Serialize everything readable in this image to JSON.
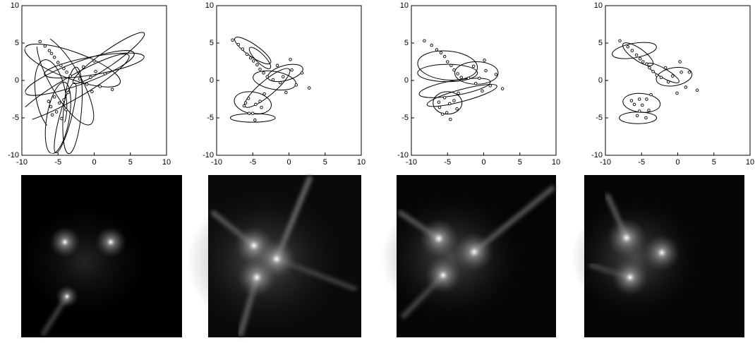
{
  "chart_data": [
    {
      "type": "scatter",
      "xlim": [
        -10,
        10
      ],
      "ylim": [
        -10,
        10
      ],
      "xticks": [
        -10,
        -5,
        0,
        5,
        10
      ],
      "yticks": [
        -10,
        -5,
        0,
        5,
        10
      ],
      "color": "#000000",
      "x": [
        -7.5,
        -6.8,
        -6.2,
        -5.9,
        -5.5,
        -5.0,
        -4.6,
        -4.2,
        -3.8,
        -3.3,
        -0.5,
        0.2,
        -1.0,
        0.8,
        1.5,
        -2.0,
        0.0,
        -1.5,
        2.5,
        -0.3,
        -5.5,
        -4.8,
        -6.0,
        -4.2,
        -5.2,
        -3.6,
        -6.3,
        -4.5,
        -5.8,
        -3.9
      ],
      "values": [
        5.2,
        4.6,
        4.0,
        3.6,
        3.1,
        2.4,
        2.0,
        1.6,
        1.1,
        0.6,
        0.4,
        1.2,
        -0.5,
        -0.8,
        0.9,
        0.2,
        2.6,
        1.8,
        -1.2,
        -1.5,
        -2.2,
        -3.0,
        -3.5,
        -2.6,
        -4.2,
        -1.6,
        -2.8,
        -5.1,
        -4.6,
        -3.9
      ],
      "ellipses": [
        {
          "cx": -3,
          "cy": -1,
          "rx": 9,
          "ry": 1.5,
          "angle": 30
        },
        {
          "cx": -3,
          "cy": -4,
          "rx": 6,
          "ry": 1.2,
          "angle": 85
        },
        {
          "cx": -2,
          "cy": 1,
          "rx": 8,
          "ry": 1.5,
          "angle": 20
        },
        {
          "cx": -4,
          "cy": 0,
          "rx": 7,
          "ry": 2,
          "angle": -60
        },
        {
          "cx": 0,
          "cy": 2,
          "rx": 7,
          "ry": 1.2,
          "angle": 10
        },
        {
          "cx": -5,
          "cy": -5,
          "rx": 5,
          "ry": 1.5,
          "angle": 80
        },
        {
          "cx": 2,
          "cy": 3,
          "rx": 6,
          "ry": 1,
          "angle": 35
        },
        {
          "cx": -3,
          "cy": 2,
          "rx": 7,
          "ry": 1.8,
          "angle": -20
        },
        {
          "cx": -6,
          "cy": -2,
          "rx": 5,
          "ry": 2,
          "angle": 100
        },
        {
          "cx": -4,
          "cy": -5,
          "rx": 5,
          "ry": 0.8,
          "angle": 75
        }
      ]
    },
    {
      "type": "scatter",
      "xlim": [
        -10,
        10
      ],
      "ylim": [
        -10,
        10
      ],
      "xticks": [
        -10,
        -5,
        0,
        5,
        10
      ],
      "yticks": [
        -10,
        -5,
        0,
        5,
        10
      ],
      "color": "#000000",
      "x": [
        -7.8,
        -7.0,
        -6.4,
        -5.8,
        -5.3,
        -4.9,
        -4.4,
        -4.0,
        -3.5,
        -3.0,
        -0.8,
        0.4,
        -1.2,
        1.0,
        1.8,
        -2.2,
        0.2,
        -1.6,
        2.8,
        -0.4,
        -5.6,
        -4.6,
        -6.2,
        -4.0,
        -5.0,
        -3.4,
        -6.0,
        -4.7,
        -5.5,
        -3.8
      ],
      "values": [
        5.4,
        4.8,
        4.2,
        3.5,
        3.0,
        2.6,
        2.1,
        1.5,
        1.0,
        0.5,
        0.5,
        1.4,
        -0.3,
        -0.6,
        1.0,
        0.1,
        2.8,
        2.0,
        -1.0,
        -1.6,
        -2.4,
        -3.2,
        -3.4,
        -2.8,
        -4.4,
        -1.8,
        -3.0,
        -5.3,
        -4.4,
        -3.6
      ],
      "ellipses": [
        {
          "cx": -5,
          "cy": 4,
          "rx": 3,
          "ry": 0.8,
          "angle": -35
        },
        {
          "cx": -0.5,
          "cy": 1,
          "rx": 2.5,
          "ry": 1,
          "angle": 15
        },
        {
          "cx": -5,
          "cy": -3,
          "rx": 1.5,
          "ry": 2.5,
          "angle": 80
        },
        {
          "cx": -3,
          "cy": -1,
          "rx": 4,
          "ry": 1,
          "angle": 40
        },
        {
          "cx": -5,
          "cy": -5,
          "rx": 0.6,
          "ry": 3,
          "angle": 90
        },
        {
          "cx": -2,
          "cy": 0,
          "rx": 3,
          "ry": 1.2,
          "angle": -10
        },
        {
          "cx": -4,
          "cy": 3,
          "rx": 2,
          "ry": 0.6,
          "angle": -45
        }
      ]
    },
    {
      "type": "scatter",
      "xlim": [
        -10,
        10
      ],
      "ylim": [
        -10,
        10
      ],
      "xticks": [
        -10,
        -5,
        0,
        5,
        10
      ],
      "yticks": [
        -10,
        -5,
        0,
        5,
        10
      ],
      "color": "#000000",
      "x": [
        -8.2,
        -7.2,
        -6.5,
        -5.9,
        -5.4,
        -5.0,
        -4.5,
        -4.1,
        -3.6,
        -3.1,
        -0.6,
        0.3,
        -1.1,
        0.9,
        1.7,
        -2.1,
        0.1,
        -1.4,
        2.6,
        -0.2,
        -5.4,
        -4.7,
        -6.1,
        -4.1,
        -5.1,
        -3.5,
        -6.2,
        -4.6,
        -5.7,
        -3.7
      ],
      "values": [
        5.3,
        4.7,
        4.1,
        3.7,
        3.2,
        2.5,
        2.0,
        1.4,
        0.9,
        0.4,
        0.3,
        1.3,
        -0.4,
        -0.7,
        0.8,
        0.3,
        2.7,
        1.9,
        -1.1,
        -1.4,
        -2.3,
        -3.1,
        -3.6,
        -2.7,
        -4.3,
        -1.7,
        -2.9,
        -5.2,
        -4.5,
        -3.8
      ],
      "ellipses": [
        {
          "cx": -5,
          "cy": 2,
          "rx": 2,
          "ry": 4,
          "angle": 85
        },
        {
          "cx": -1,
          "cy": 1,
          "rx": 3,
          "ry": 1.5,
          "angle": 0
        },
        {
          "cx": -5,
          "cy": -3,
          "rx": 2,
          "ry": 1.5,
          "angle": 0
        },
        {
          "cx": -4,
          "cy": -1,
          "rx": 5,
          "ry": 1,
          "angle": 10
        },
        {
          "cx": -3,
          "cy": -2,
          "rx": 5,
          "ry": 0.8,
          "angle": 15
        },
        {
          "cx": -5,
          "cy": 1,
          "rx": 1.2,
          "ry": 4,
          "angle": 90
        }
      ]
    },
    {
      "type": "scatter",
      "xlim": [
        -10,
        10
      ],
      "ylim": [
        -10,
        10
      ],
      "xticks": [
        -10,
        -5,
        0,
        5,
        10
      ],
      "yticks": [
        -10,
        -5,
        0,
        5,
        10
      ],
      "color": "#000000",
      "x": [
        -8.0,
        -6.9,
        -6.3,
        -5.7,
        -5.2,
        -4.8,
        -4.3,
        -3.9,
        -3.4,
        -2.9,
        -0.7,
        0.5,
        -1.3,
        1.1,
        1.6,
        -2.3,
        0.3,
        -1.7,
        2.7,
        -0.1,
        -5.3,
        -4.9,
        -6.0,
        -4.3,
        -5.3,
        -3.7,
        -6.4,
        -4.4,
        -5.6,
        -4.0
      ],
      "values": [
        5.3,
        4.5,
        4.0,
        3.4,
        2.9,
        2.5,
        2.2,
        1.7,
        1.2,
        0.7,
        0.6,
        1.1,
        -0.2,
        -0.9,
        1.1,
        0.4,
        2.5,
        1.7,
        -1.3,
        -1.7,
        -2.5,
        -3.3,
        -3.2,
        -2.5,
        -4.1,
        -1.9,
        -2.7,
        -5.0,
        -4.7,
        -4.0
      ],
      "ellipses": [
        {
          "cx": -5.5,
          "cy": 3.5,
          "rx": 2.5,
          "ry": 0.8,
          "angle": -35
        },
        {
          "cx": -0.5,
          "cy": 0.5,
          "rx": 2.5,
          "ry": 1.2,
          "angle": 10
        },
        {
          "cx": -5,
          "cy": -3,
          "rx": 1.3,
          "ry": 2.5,
          "angle": 85
        },
        {
          "cx": -5.5,
          "cy": -5,
          "rx": 0.8,
          "ry": 2.5,
          "angle": 90
        },
        {
          "cx": -6,
          "cy": 4,
          "rx": 1,
          "ry": 3,
          "angle": 100
        },
        {
          "cx": -2,
          "cy": 1,
          "rx": 2.5,
          "ry": 0.6,
          "angle": -30
        }
      ]
    }
  ]
}
